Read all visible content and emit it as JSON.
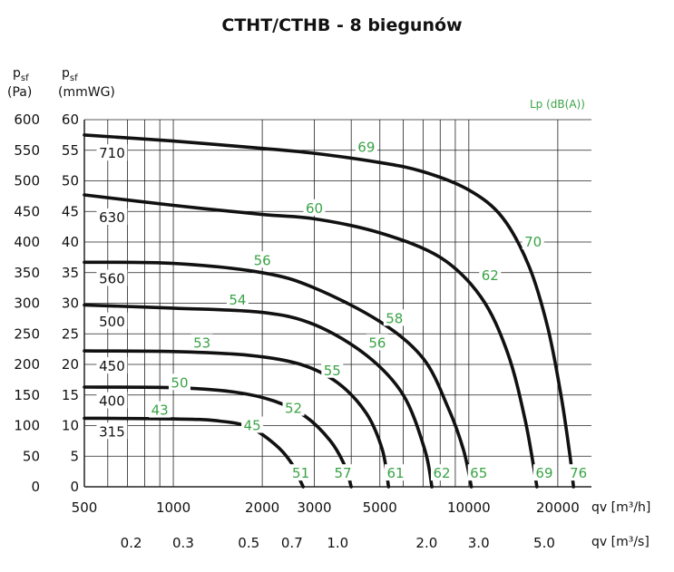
{
  "chart_data": {
    "type": "line",
    "title": "CTHT/CTHB - 8 biegunów",
    "left_axis_label": {
      "symbol": "p",
      "sub": "sf",
      "unit": "(Pa)"
    },
    "right_axis_label": {
      "symbol": "p",
      "sub": "sf",
      "unit": "(mmWG)"
    },
    "x_axis_label": "qv [m³/h]",
    "x2_axis_label": "qv [m³/s]",
    "legend_label": "Lp (dB(A))",
    "xscale": "log",
    "xlim": [
      500,
      26000
    ],
    "ylim": [
      0,
      600
    ],
    "y_ticks": [
      0,
      50,
      100,
      150,
      200,
      250,
      300,
      350,
      400,
      450,
      500,
      550,
      600
    ],
    "y2_ticks": [
      0,
      5,
      10,
      15,
      20,
      25,
      30,
      35,
      40,
      45,
      50,
      55,
      60
    ],
    "x_tick_labels": [
      {
        "value": 500,
        "label": "500"
      },
      {
        "value": 1000,
        "label": "1000"
      },
      {
        "value": 2000,
        "label": "2000"
      },
      {
        "value": 3000,
        "label": "3000"
      },
      {
        "value": 5000,
        "label": "5000"
      },
      {
        "value": 10000,
        "label": "10000"
      },
      {
        "value": 20000,
        "label": "20000"
      }
    ],
    "x2_tick_labels": [
      {
        "value": 720,
        "label": "0.2"
      },
      {
        "value": 1080,
        "label": "0.3"
      },
      {
        "value": 1800,
        "label": "0.5"
      },
      {
        "value": 2520,
        "label": "0.7"
      },
      {
        "value": 3600,
        "label": "1.0"
      },
      {
        "value": 7200,
        "label": "2.0"
      },
      {
        "value": 10800,
        "label": "3.0"
      },
      {
        "value": 18000,
        "label": "5.0"
      }
    ],
    "grid_x": [
      600,
      700,
      800,
      900,
      1000,
      2000,
      3000,
      4000,
      5000,
      6000,
      7000,
      8000,
      9000,
      10000,
      20000
    ],
    "series": [
      {
        "name": "315",
        "points": [
          [
            500,
            112
          ],
          [
            1000,
            111
          ],
          [
            1400,
            108
          ],
          [
            1800,
            98
          ],
          [
            2200,
            70
          ],
          [
            2500,
            40
          ],
          [
            2750,
            0
          ]
        ]
      },
      {
        "name": "400",
        "points": [
          [
            500,
            163
          ],
          [
            1000,
            162
          ],
          [
            1600,
            155
          ],
          [
            2200,
            140
          ],
          [
            2800,
            115
          ],
          [
            3400,
            75
          ],
          [
            3800,
            35
          ],
          [
            4000,
            0
          ]
        ]
      },
      {
        "name": "450",
        "points": [
          [
            500,
            222
          ],
          [
            1000,
            221
          ],
          [
            1800,
            215
          ],
          [
            2700,
            200
          ],
          [
            3600,
            170
          ],
          [
            4500,
            120
          ],
          [
            5100,
            60
          ],
          [
            5350,
            0
          ]
        ]
      },
      {
        "name": "500",
        "points": [
          [
            500,
            297
          ],
          [
            1000,
            292
          ],
          [
            2000,
            285
          ],
          [
            3000,
            265
          ],
          [
            4500,
            215
          ],
          [
            6000,
            150
          ],
          [
            7100,
            60
          ],
          [
            7500,
            0
          ]
        ]
      },
      {
        "name": "560",
        "points": [
          [
            500,
            367
          ],
          [
            1000,
            365
          ],
          [
            2000,
            350
          ],
          [
            3000,
            325
          ],
          [
            5000,
            270
          ],
          [
            7000,
            210
          ],
          [
            8500,
            130
          ],
          [
            9600,
            60
          ],
          [
            10200,
            0
          ]
        ]
      },
      {
        "name": "630",
        "points": [
          [
            500,
            477
          ],
          [
            1000,
            460
          ],
          [
            2000,
            445
          ],
          [
            3000,
            438
          ],
          [
            5000,
            415
          ],
          [
            8000,
            375
          ],
          [
            11000,
            310
          ],
          [
            13500,
            220
          ],
          [
            15500,
            110
          ],
          [
            17000,
            0
          ]
        ]
      },
      {
        "name": "710",
        "points": [
          [
            500,
            575
          ],
          [
            1000,
            565
          ],
          [
            2000,
            553
          ],
          [
            3000,
            545
          ],
          [
            5000,
            530
          ],
          [
            7000,
            515
          ],
          [
            10000,
            485
          ],
          [
            13000,
            440
          ],
          [
            16000,
            360
          ],
          [
            18500,
            260
          ],
          [
            20500,
            150
          ],
          [
            22000,
            50
          ],
          [
            22600,
            0
          ]
        ]
      }
    ],
    "size_labels": [
      {
        "text": "315",
        "x": 620,
        "y": 90
      },
      {
        "text": "400",
        "x": 620,
        "y": 140
      },
      {
        "text": "450",
        "x": 620,
        "y": 197
      },
      {
        "text": "500",
        "x": 620,
        "y": 270
      },
      {
        "text": "560",
        "x": 620,
        "y": 340
      },
      {
        "text": "630",
        "x": 620,
        "y": 440
      },
      {
        "text": "710",
        "x": 620,
        "y": 545
      }
    ],
    "noise_labels": [
      {
        "text": "43",
        "x": 900,
        "y": 125
      },
      {
        "text": "45",
        "x": 1850,
        "y": 100
      },
      {
        "text": "51",
        "x": 2700,
        "y": 22
      },
      {
        "text": "50",
        "x": 1050,
        "y": 170
      },
      {
        "text": "52",
        "x": 2550,
        "y": 128
      },
      {
        "text": "57",
        "x": 3750,
        "y": 22
      },
      {
        "text": "53",
        "x": 1250,
        "y": 235
      },
      {
        "text": "55",
        "x": 3450,
        "y": 190
      },
      {
        "text": "61",
        "x": 5650,
        "y": 22
      },
      {
        "text": "54",
        "x": 1650,
        "y": 305
      },
      {
        "text": "56",
        "x": 4900,
        "y": 235
      },
      {
        "text": "62",
        "x": 8100,
        "y": 22
      },
      {
        "text": "56",
        "x": 2000,
        "y": 370
      },
      {
        "text": "58",
        "x": 5600,
        "y": 275
      },
      {
        "text": "65",
        "x": 10800,
        "y": 22
      },
      {
        "text": "60",
        "x": 3000,
        "y": 455
      },
      {
        "text": "62",
        "x": 11800,
        "y": 345
      },
      {
        "text": "69",
        "x": 18000,
        "y": 22
      },
      {
        "text": "69",
        "x": 4500,
        "y": 555
      },
      {
        "text": "70",
        "x": 16500,
        "y": 400
      },
      {
        "text": "76",
        "x": 23500,
        "y": 22
      }
    ]
  }
}
